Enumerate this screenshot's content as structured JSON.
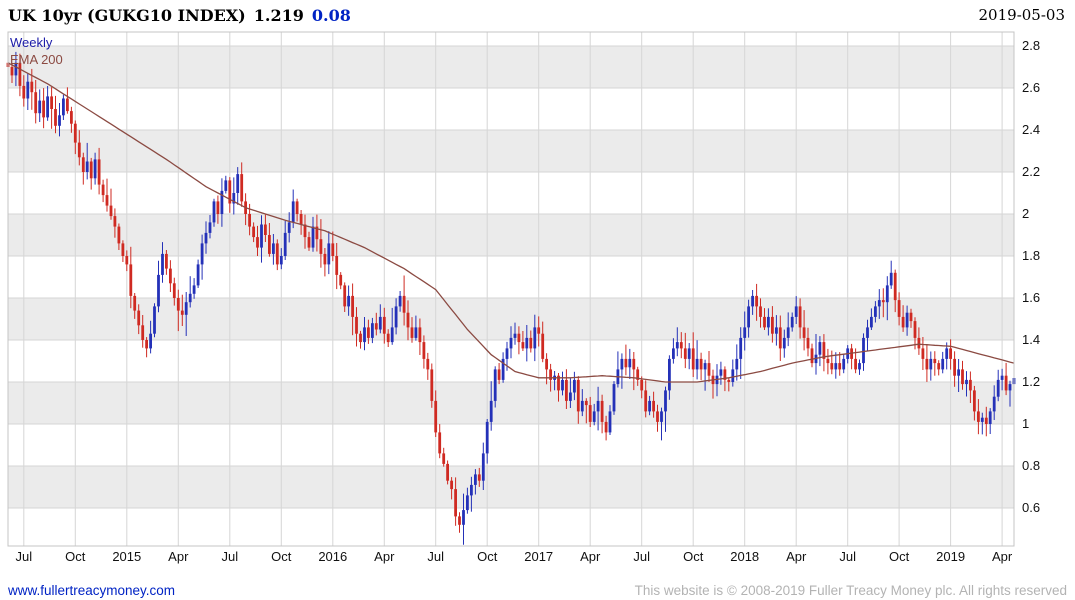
{
  "header": {
    "title": "UK 10yr (GUKG10 INDEX)",
    "last_price": "1.219",
    "change": "0.08",
    "date": "2019-05-03"
  },
  "chart": {
    "timeframe_label": "Weekly",
    "overlay_label": "EMA 200"
  },
  "footer": {
    "site_link": "www.fullertreacymoney.com",
    "copyright": "This website is © 2008-2019 Fuller Treacy Money plc. All rights reserved"
  },
  "chart_data": {
    "type": "candlestick",
    "title": "UK 10yr (GUKG10 INDEX)",
    "timeframe": "Weekly",
    "overlay": "EMA 200",
    "last_price": 1.219,
    "change": 0.08,
    "date": "2019-05-03",
    "ylim": [
      0.42,
      2.87
    ],
    "grid": true,
    "y_ticks": [
      "2.8",
      "2.6",
      "2.4",
      "2.2",
      "2",
      "1.8",
      "1.6",
      "1.4",
      "1.2",
      "1",
      "0.8",
      "0.6"
    ],
    "x_ticks": [
      {
        "label": "Jul",
        "week": 4
      },
      {
        "label": "Oct",
        "week": 17
      },
      {
        "label": "2015",
        "week": 30
      },
      {
        "label": "Apr",
        "week": 43
      },
      {
        "label": "Jul",
        "week": 56
      },
      {
        "label": "Oct",
        "week": 69
      },
      {
        "label": "2016",
        "week": 82
      },
      {
        "label": "Apr",
        "week": 95
      },
      {
        "label": "Jul",
        "week": 108
      },
      {
        "label": "Oct",
        "week": 121
      },
      {
        "label": "2017",
        "week": 134
      },
      {
        "label": "Apr",
        "week": 147
      },
      {
        "label": "Jul",
        "week": 160
      },
      {
        "label": "Oct",
        "week": 173
      },
      {
        "label": "2018",
        "week": 186
      },
      {
        "label": "Apr",
        "week": 199
      },
      {
        "label": "Jul",
        "week": 212
      },
      {
        "label": "Oct",
        "week": 225
      },
      {
        "label": "2019",
        "week": 238
      },
      {
        "label": "Apr",
        "week": 251
      }
    ],
    "weekly_close": [
      2.7,
      2.66,
      2.72,
      2.61,
      2.55,
      2.63,
      2.58,
      2.48,
      2.54,
      2.46,
      2.56,
      2.5,
      2.42,
      2.47,
      2.55,
      2.49,
      2.43,
      2.34,
      2.27,
      2.2,
      2.25,
      2.17,
      2.26,
      2.14,
      2.09,
      2.04,
      1.99,
      1.94,
      1.86,
      1.8,
      1.76,
      1.61,
      1.54,
      1.47,
      1.4,
      1.36,
      1.43,
      1.56,
      1.71,
      1.81,
      1.74,
      1.67,
      1.6,
      1.54,
      1.52,
      1.58,
      1.62,
      1.66,
      1.76,
      1.86,
      1.91,
      1.96,
      2.06,
      2.0,
      2.11,
      2.16,
      2.05,
      2.1,
      2.19,
      2.06,
      2.0,
      1.94,
      1.89,
      1.84,
      1.95,
      1.9,
      1.81,
      1.86,
      1.76,
      1.8,
      1.91,
      1.96,
      2.06,
      2.0,
      1.95,
      1.89,
      1.84,
      1.94,
      1.88,
      1.81,
      1.76,
      1.86,
      1.8,
      1.71,
      1.66,
      1.56,
      1.61,
      1.51,
      1.43,
      1.39,
      1.46,
      1.41,
      1.48,
      1.45,
      1.51,
      1.43,
      1.39,
      1.46,
      1.56,
      1.61,
      1.53,
      1.46,
      1.41,
      1.46,
      1.39,
      1.31,
      1.26,
      1.11,
      0.96,
      0.86,
      0.81,
      0.73,
      0.69,
      0.56,
      0.52,
      0.59,
      0.66,
      0.71,
      0.76,
      0.73,
      0.86,
      1.01,
      1.11,
      1.26,
      1.21,
      1.31,
      1.36,
      1.41,
      1.43,
      1.39,
      1.36,
      1.41,
      1.36,
      1.46,
      1.43,
      1.31,
      1.26,
      1.21,
      1.23,
      1.16,
      1.21,
      1.11,
      1.15,
      1.21,
      1.06,
      1.11,
      1.09,
      1.01,
      1.06,
      1.11,
      1.01,
      0.96,
      1.06,
      1.19,
      1.26,
      1.31,
      1.27,
      1.31,
      1.26,
      1.21,
      1.16,
      1.06,
      1.11,
      1.06,
      1.01,
      1.06,
      1.16,
      1.31,
      1.36,
      1.39,
      1.36,
      1.31,
      1.36,
      1.26,
      1.31,
      1.26,
      1.29,
      1.23,
      1.19,
      1.23,
      1.26,
      1.21,
      1.2,
      1.26,
      1.31,
      1.41,
      1.46,
      1.56,
      1.61,
      1.56,
      1.51,
      1.46,
      1.51,
      1.43,
      1.46,
      1.36,
      1.41,
      1.46,
      1.51,
      1.56,
      1.46,
      1.41,
      1.36,
      1.29,
      1.33,
      1.39,
      1.31,
      1.29,
      1.26,
      1.29,
      1.26,
      1.31,
      1.36,
      1.31,
      1.26,
      1.29,
      1.41,
      1.46,
      1.51,
      1.56,
      1.59,
      1.58,
      1.66,
      1.72,
      1.59,
      1.51,
      1.46,
      1.53,
      1.49,
      1.41,
      1.36,
      1.31,
      1.26,
      1.31,
      1.29,
      1.26,
      1.31,
      1.36,
      1.31,
      1.23,
      1.26,
      1.19,
      1.21,
      1.16,
      1.06,
      1.01,
      1.03,
      1.0,
      1.06,
      1.13,
      1.21,
      1.23,
      1.16,
      1.19,
      1.219
    ],
    "ema200_anchors": [
      [
        0,
        2.72
      ],
      [
        10,
        2.62
      ],
      [
        20,
        2.5
      ],
      [
        30,
        2.38
      ],
      [
        40,
        2.26
      ],
      [
        50,
        2.13
      ],
      [
        60,
        2.03
      ],
      [
        70,
        1.97
      ],
      [
        80,
        1.92
      ],
      [
        90,
        1.84
      ],
      [
        100,
        1.74
      ],
      [
        108,
        1.64
      ],
      [
        116,
        1.45
      ],
      [
        122,
        1.33
      ],
      [
        128,
        1.25
      ],
      [
        134,
        1.22
      ],
      [
        142,
        1.22
      ],
      [
        150,
        1.23
      ],
      [
        158,
        1.22
      ],
      [
        166,
        1.2
      ],
      [
        174,
        1.2
      ],
      [
        182,
        1.22
      ],
      [
        190,
        1.25
      ],
      [
        198,
        1.29
      ],
      [
        206,
        1.32
      ],
      [
        214,
        1.34
      ],
      [
        222,
        1.36
      ],
      [
        230,
        1.38
      ],
      [
        238,
        1.37
      ],
      [
        246,
        1.33
      ],
      [
        254,
        1.29
      ]
    ],
    "colors": {
      "up": "#2431b8",
      "down": "#cf2a22",
      "ema": "#8b4a42",
      "band": "#ebebeb",
      "grid": "#d6d6d6",
      "axis_text": "#111111",
      "accent_blue": "#0023c4",
      "weekly_label": "#1b1ba8"
    }
  }
}
